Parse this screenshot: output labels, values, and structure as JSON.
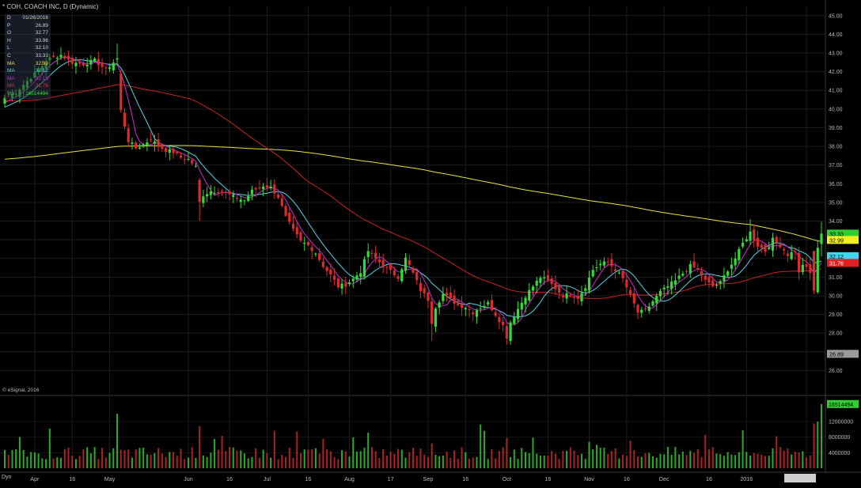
{
  "header": {
    "title": "* COH, COACH INC, D (Dynamic)"
  },
  "infobox": {
    "rows": [
      {
        "label": "D",
        "value": "01/26/2016",
        "color": "#d0d0d0"
      },
      {
        "label": "P",
        "value": "26.89",
        "color": "#d0d0d0"
      },
      {
        "label": "O",
        "value": "32.77",
        "color": "#d0d0d0"
      },
      {
        "label": "H",
        "value": "33.96",
        "color": "#d0d0d0"
      },
      {
        "label": "L",
        "value": "32.10",
        "color": "#d0d0d0"
      },
      {
        "label": "C",
        "value": "33.33",
        "color": "#d0d0d0"
      },
      {
        "label": "MA",
        "value": "32.99",
        "color": "#e8e23a"
      },
      {
        "label": "MA",
        "value": "32.12",
        "color": "#4fd8e6"
      },
      {
        "label": "MA",
        "value": "32.19",
        "color": "#d02ad0"
      },
      {
        "label": "MA",
        "value": "31.76",
        "color": "#e03030"
      },
      {
        "label": "Vol",
        "value": "16514494",
        "color": "#40d040"
      }
    ]
  },
  "footer": {
    "copyright": "© eSignal, 2016",
    "dyn_label": "Dyn"
  },
  "colors": {
    "background": "#000000",
    "grid": "#1c1c1c",
    "up": "#33dd33",
    "down": "#dd2a2a",
    "ma200": "#e8e23a",
    "ma10": "#4fd8e6",
    "ma5": "#d02ad0",
    "ma50": "#cc2222",
    "axis_text": "#b8b8b8"
  },
  "chart_data": {
    "type": "candlestick",
    "symbol": "COH",
    "price_axis": {
      "ylim": [
        25.0,
        45.5
      ],
      "ticks": [
        "45.00",
        "44.00",
        "43.00",
        "42.00",
        "41.00",
        "40.00",
        "39.00",
        "38.00",
        "37.00",
        "36.00",
        "35.00",
        "34.00",
        "33.00",
        "32.00",
        "31.00",
        "30.00",
        "29.00",
        "28.00",
        "27.00",
        "26.00"
      ]
    },
    "volume_axis": {
      "ylim": [
        0,
        17500000
      ],
      "ticks": [
        {
          "value": 4000000,
          "label": "4000000"
        },
        {
          "value": 8000000,
          "label": "8000000"
        },
        {
          "value": 12000000,
          "label": "12000000"
        }
      ]
    },
    "x_labels": [
      {
        "day": 8,
        "label": "Apr"
      },
      {
        "day": 18,
        "label": "16"
      },
      {
        "day": 28,
        "label": "May"
      },
      {
        "day": 49,
        "label": "Jun"
      },
      {
        "day": 60,
        "label": "16"
      },
      {
        "day": 70,
        "label": "Jul"
      },
      {
        "day": 81,
        "label": "16"
      },
      {
        "day": 92,
        "label": "Aug"
      },
      {
        "day": 103,
        "label": "17"
      },
      {
        "day": 113,
        "label": "Sep"
      },
      {
        "day": 123,
        "label": "16"
      },
      {
        "day": 134,
        "label": "Oct"
      },
      {
        "day": 145,
        "label": "16"
      },
      {
        "day": 156,
        "label": "Nov"
      },
      {
        "day": 166,
        "label": "16"
      },
      {
        "day": 176,
        "label": "Dec"
      },
      {
        "day": 188,
        "label": "16"
      },
      {
        "day": 198,
        "label": "2016"
      },
      {
        "day": 214,
        "label": "01/26/2016"
      }
    ],
    "price_tags": [
      {
        "label": "33.33",
        "value": 33.33,
        "bg": "#33cc33",
        "fg": "#000000"
      },
      {
        "label": "32.99",
        "value": 32.99,
        "bg": "#f0f020",
        "fg": "#000000"
      },
      {
        "label": "32.12",
        "value": 32.12,
        "bg": "#40d8f0",
        "fg": "#000000"
      },
      {
        "label": "31.76",
        "value": 31.76,
        "bg": "#e02020",
        "fg": "#ffffff"
      },
      {
        "label": "26.89",
        "value": 26.89,
        "bg": "#9a9a9a",
        "fg": "#000000"
      }
    ],
    "volume_tag": {
      "label": "16514494",
      "value": 16514494,
      "bg": "#33cc33",
      "fg": "#000000"
    },
    "close_anchors": [
      [
        0,
        40.6
      ],
      [
        3,
        40.9
      ],
      [
        6,
        41.5
      ],
      [
        9,
        42.1
      ],
      [
        12,
        42.7
      ],
      [
        15,
        42.9
      ],
      [
        18,
        42.5
      ],
      [
        21,
        42.4
      ],
      [
        24,
        42.6
      ],
      [
        27,
        42.1
      ],
      [
        30,
        42.7
      ],
      [
        31,
        39.9
      ],
      [
        33,
        38.3
      ],
      [
        35,
        37.9
      ],
      [
        37,
        38.1
      ],
      [
        39,
        38.4
      ],
      [
        41,
        38.0
      ],
      [
        43,
        37.8
      ],
      [
        45,
        37.7
      ],
      [
        47,
        37.4
      ],
      [
        49,
        37.3
      ],
      [
        51,
        36.9
      ],
      [
        52,
        35.0
      ],
      [
        53,
        35.4
      ],
      [
        55,
        35.6
      ],
      [
        58,
        35.6
      ],
      [
        61,
        35.3
      ],
      [
        64,
        35.1
      ],
      [
        66,
        35.6
      ],
      [
        69,
        35.9
      ],
      [
        71,
        35.8
      ],
      [
        73,
        35.3
      ],
      [
        75,
        34.2
      ],
      [
        77,
        33.5
      ],
      [
        79,
        32.9
      ],
      [
        81,
        32.7
      ],
      [
        83,
        32.3
      ],
      [
        85,
        31.6
      ],
      [
        87,
        31.1
      ],
      [
        89,
        30.5
      ],
      [
        91,
        30.6
      ],
      [
        93,
        30.9
      ],
      [
        95,
        31.3
      ],
      [
        97,
        32.4
      ],
      [
        99,
        32.0
      ],
      [
        101,
        31.6
      ],
      [
        103,
        31.3
      ],
      [
        105,
        31.0
      ],
      [
        107,
        32.0
      ],
      [
        109,
        31.2
      ],
      [
        111,
        30.3
      ],
      [
        113,
        29.8
      ],
      [
        114,
        28.6
      ],
      [
        115,
        29.4
      ],
      [
        117,
        30.1
      ],
      [
        119,
        29.8
      ],
      [
        121,
        29.5
      ],
      [
        123,
        29.4
      ],
      [
        125,
        29.1
      ],
      [
        127,
        29.4
      ],
      [
        129,
        29.6
      ],
      [
        131,
        29.0
      ],
      [
        133,
        28.4
      ],
      [
        134,
        27.8
      ],
      [
        135,
        28.6
      ],
      [
        137,
        29.3
      ],
      [
        139,
        30.0
      ],
      [
        141,
        30.5
      ],
      [
        143,
        31.0
      ],
      [
        145,
        30.8
      ],
      [
        147,
        30.4
      ],
      [
        149,
        30.0
      ],
      [
        151,
        30.1
      ],
      [
        153,
        29.9
      ],
      [
        155,
        30.5
      ],
      [
        157,
        31.4
      ],
      [
        159,
        31.7
      ],
      [
        161,
        31.8
      ],
      [
        163,
        31.4
      ],
      [
        165,
        30.9
      ],
      [
        167,
        30.0
      ],
      [
        169,
        29.1
      ],
      [
        171,
        29.2
      ],
      [
        173,
        29.7
      ],
      [
        175,
        30.2
      ],
      [
        177,
        30.5
      ],
      [
        179,
        30.8
      ],
      [
        181,
        31.2
      ],
      [
        183,
        31.6
      ],
      [
        185,
        31.4
      ],
      [
        187,
        30.8
      ],
      [
        189,
        30.5
      ],
      [
        191,
        30.7
      ],
      [
        193,
        31.4
      ],
      [
        195,
        32.0
      ],
      [
        197,
        32.8
      ],
      [
        199,
        33.4
      ],
      [
        201,
        32.7
      ],
      [
        203,
        32.4
      ],
      [
        205,
        33.0
      ],
      [
        207,
        32.7
      ],
      [
        209,
        32.2
      ],
      [
        211,
        32.4
      ],
      [
        212,
        31.2
      ],
      [
        213,
        31.7
      ],
      [
        215,
        31.2
      ],
      [
        216,
        30.3
      ],
      [
        217,
        32.5
      ],
      [
        218,
        33.33
      ]
    ],
    "moving_averages": [
      {
        "label": "MA",
        "color": "#e8e23a",
        "window": 200,
        "value": 32.99
      },
      {
        "label": "MA",
        "color": "#cc2222",
        "window": 50,
        "value": 31.76
      },
      {
        "label": "MA",
        "color": "#4fd8e6",
        "window": 10,
        "value": 32.12
      },
      {
        "label": "MA",
        "color": "#d02ad0",
        "window": 5,
        "value": 32.19
      }
    ]
  }
}
